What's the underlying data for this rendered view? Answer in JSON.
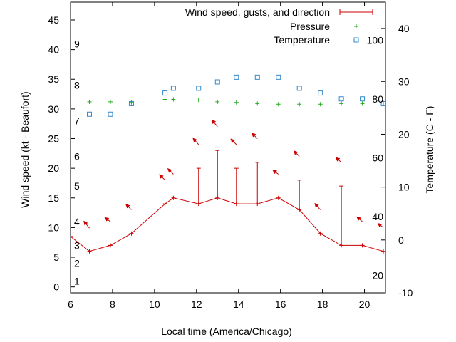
{
  "chart_data": {
    "type": "line",
    "xlabel": "Local time (America/Chicago)",
    "ylabel_left": "Wind speed (kt - Beaufort)",
    "ylabel_right": "Temperature (C - F)",
    "x_range": [
      6,
      21
    ],
    "x_ticks": [
      "6",
      "8",
      "10",
      "12",
      "14",
      "16",
      "18",
      "20"
    ],
    "y_left_range": [
      -1,
      48
    ],
    "y_left_ticks": [
      "0",
      "5",
      "10",
      "15",
      "20",
      "25",
      "30",
      "35",
      "40",
      "45"
    ],
    "y_right_range": [
      -10,
      45
    ],
    "y_right_ticks": [
      "-10",
      "0",
      "10",
      "20",
      "30",
      "40"
    ],
    "beaufort_labels": [
      "1",
      "2",
      "3",
      "4",
      "5",
      "6",
      "7",
      "8",
      "9"
    ],
    "fahrenheit_labels": [
      "20",
      "40",
      "60",
      "80",
      "100"
    ],
    "legend_position": "top-right",
    "colors": {
      "wind": "#cc0000",
      "pressure": "#22aa22",
      "temperature": "#3388cc",
      "axis": "#000000"
    },
    "series": [
      {
        "name": "Wind speed, gusts, and direction",
        "x": [
          6,
          6.9,
          7.9,
          8.9,
          10.5,
          10.9,
          12.1,
          13.0,
          13.9,
          14.9,
          15.9,
          16.9,
          17.9,
          18.9,
          19.9,
          20.9
        ],
        "values": [
          8.5,
          6,
          7,
          9,
          14,
          15,
          14,
          15,
          14,
          14,
          15,
          13,
          9,
          7,
          7,
          6
        ]
      },
      {
        "name": "Gusts",
        "x": [
          12.1,
          13.0,
          13.9,
          14.9,
          16.9,
          18.9
        ],
        "values": [
          20,
          23,
          20,
          21,
          18,
          17
        ]
      },
      {
        "name": "Pressure",
        "x": [
          6.9,
          7.9,
          8.9,
          10.5,
          10.9,
          12.1,
          13.0,
          13.9,
          14.9,
          15.9,
          16.9,
          17.9,
          18.9,
          19.9,
          20.9
        ],
        "values": [
          31.2,
          31.2,
          31.1,
          31.6,
          31.6,
          31.5,
          31.2,
          31.1,
          30.9,
          30.8,
          30.8,
          30.8,
          30.9,
          30.9,
          31.0
        ]
      },
      {
        "name": "Temperature",
        "x": [
          6.9,
          7.9,
          8.9,
          10.5,
          10.9,
          12.1,
          13.0,
          13.9,
          14.9,
          15.9,
          16.9,
          17.9,
          18.9,
          19.9,
          20.9
        ],
        "values": [
          23.8,
          23.8,
          25.8,
          27.8,
          28.7,
          28.7,
          29.9,
          30.8,
          30.8,
          30.8,
          28.7,
          27.8,
          26.7,
          26.7,
          25.8
        ]
      },
      {
        "name": "Wind direction arrows",
        "x": [
          6.9,
          7.9,
          8.9,
          10.5,
          10.9,
          12.1,
          13.0,
          13.9,
          14.9,
          15.9,
          16.9,
          17.9,
          18.9,
          19.9,
          20.9
        ],
        "values": [
          9.9,
          11.0,
          13.0,
          18.0,
          19.0,
          24.0,
          27.0,
          24.0,
          25.0,
          19.0,
          22.0,
          13.0,
          21.0,
          11.0,
          10.0
        ],
        "dx": [
          -8,
          -8,
          -8,
          -8,
          -8,
          -8,
          -8,
          -8,
          -8,
          -8,
          -8,
          -8,
          -8,
          -8,
          -8
        ],
        "dy": [
          -10,
          -6,
          -8,
          -8,
          -8,
          -9,
          -10,
          -8,
          -8,
          -6,
          -8,
          -9,
          -7,
          -7,
          -6
        ]
      }
    ]
  }
}
